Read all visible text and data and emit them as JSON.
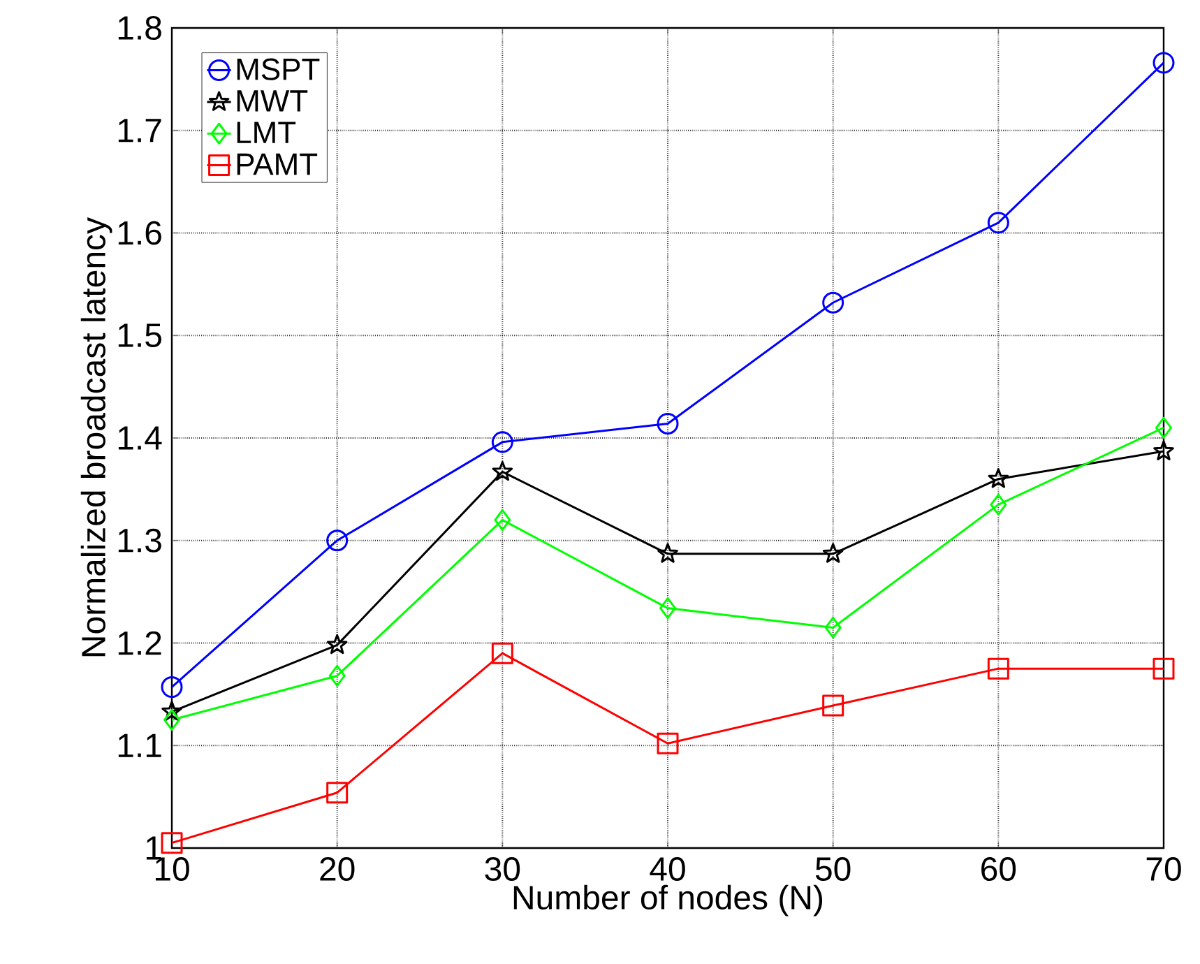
{
  "chart_data": {
    "type": "line",
    "xlabel": "Number of nodes (N)",
    "ylabel": "Normalized broadcast latency",
    "x": [
      10,
      20,
      30,
      40,
      50,
      60,
      70
    ],
    "series": [
      {
        "name": "MSPT",
        "color": "#0000ff",
        "marker": "circle",
        "values": [
          1.157,
          1.3,
          1.396,
          1.414,
          1.532,
          1.61,
          1.766
        ]
      },
      {
        "name": "MWT",
        "color": "#000000",
        "marker": "star",
        "values": [
          1.133,
          1.198,
          1.367,
          1.287,
          1.287,
          1.36,
          1.387
        ]
      },
      {
        "name": "LMT",
        "color": "#00ff00",
        "marker": "diamond",
        "values": [
          1.125,
          1.168,
          1.32,
          1.234,
          1.215,
          1.335,
          1.41
        ]
      },
      {
        "name": "PAMT",
        "color": "#ff0000",
        "marker": "square",
        "values": [
          1.005,
          1.054,
          1.19,
          1.102,
          1.139,
          1.175,
          1.175
        ]
      }
    ],
    "xlim": [
      10,
      70
    ],
    "ylim": [
      1,
      1.8
    ],
    "xticks": [
      10,
      20,
      30,
      40,
      50,
      60,
      70
    ],
    "yticks": [
      1,
      1.1,
      1.2,
      1.3,
      1.4,
      1.5,
      1.6,
      1.7,
      1.8
    ],
    "grid": true,
    "legend": "top left",
    "line_style": "solid"
  }
}
